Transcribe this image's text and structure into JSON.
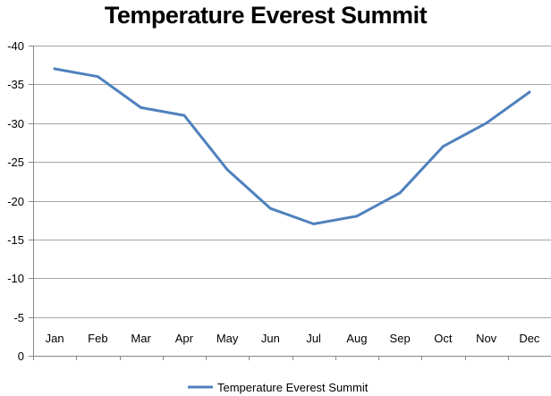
{
  "chart_data": {
    "type": "line",
    "title": "Temperature Everest Summit",
    "xlabel": "",
    "ylabel": "",
    "categories": [
      "Jan",
      "Feb",
      "Mar",
      "Apr",
      "May",
      "Jun",
      "Jul",
      "Aug",
      "Sep",
      "Oct",
      "Nov",
      "Dec"
    ],
    "series": [
      {
        "name": "Temperature Everest Summit",
        "values": [
          -37,
          -36,
          -32,
          -31,
          -24,
          -19,
          -17,
          -18,
          -21,
          -27,
          -30,
          -34
        ],
        "color": "#4f81bd"
      }
    ],
    "ylim": [
      0,
      -40
    ],
    "y_ticks": [
      -40,
      -35,
      -30,
      -25,
      -20,
      -15,
      -10,
      -5,
      0
    ],
    "y_tick_labels": [
      "-40",
      "-35",
      "-30",
      "-25",
      "-20",
      "-15",
      "-10",
      "-5",
      "0"
    ],
    "y_axis_reversed": true,
    "grid": true,
    "legend": "bottom"
  }
}
